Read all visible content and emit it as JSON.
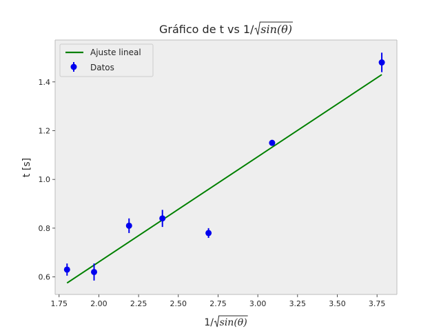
{
  "chart_data": {
    "type": "scatter",
    "title": {
      "prefix": "Gráfico de t vs 1/",
      "radicand": "sin(θ)"
    },
    "xlabel": {
      "prefix": "1/",
      "radicand": "sin(θ)"
    },
    "ylabel": "t [s]",
    "xlim": [
      1.725,
      3.875
    ],
    "ylim": [
      0.528,
      1.572
    ],
    "xticks": [
      "1.75",
      "2.00",
      "2.25",
      "2.50",
      "2.75",
      "3.00",
      "3.25",
      "3.50",
      "3.75"
    ],
    "yticks": [
      "0.6",
      "0.8",
      "1.0",
      "1.2",
      "1.4"
    ],
    "grid": false,
    "legend_position": "top-left",
    "colors": {
      "plot_background": "#eeeeee",
      "points": "#0000ee",
      "fit_line": "#008000"
    },
    "series": [
      {
        "name": "Datos",
        "kind": "errorbar",
        "x": [
          1.8,
          1.97,
          2.19,
          2.4,
          2.69,
          3.09,
          3.78
        ],
        "y": [
          0.63,
          0.62,
          0.81,
          0.84,
          0.78,
          1.15,
          1.48
        ],
        "yerr": [
          0.025,
          0.035,
          0.03,
          0.035,
          0.02,
          0.01,
          0.04
        ]
      },
      {
        "name": "Ajuste lineal",
        "kind": "line",
        "x": [
          1.8,
          3.78
        ],
        "y": [
          0.575,
          1.43
        ]
      }
    ]
  }
}
